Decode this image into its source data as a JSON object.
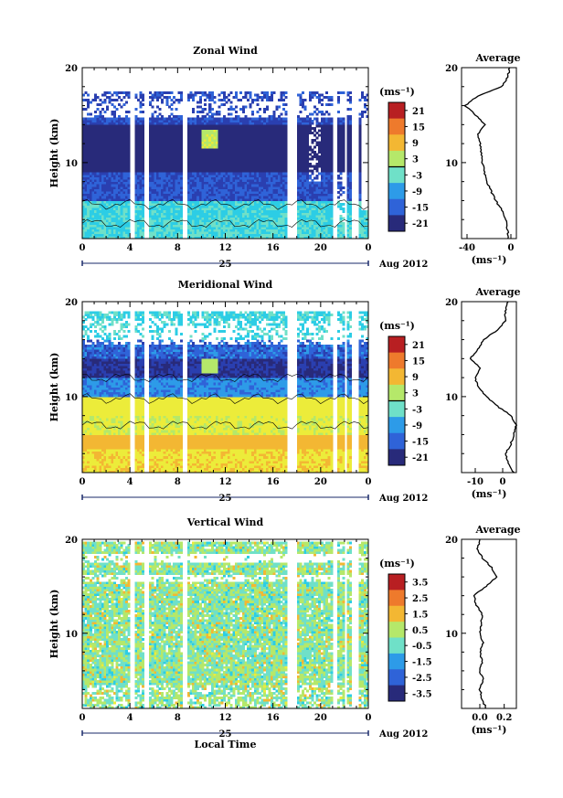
{
  "chart_data": [
    {
      "type": "heatmap",
      "title": "Zonal Wind",
      "ylabel": "Height (km)",
      "x_ticks": [
        "0",
        "4",
        "8",
        "12",
        "16",
        "20",
        "0"
      ],
      "y_ticks": [
        "20",
        "10"
      ],
      "date_label": "25",
      "month_label": "Aug 2012",
      "units": "(ms⁻¹)",
      "colorbar_ticks": [
        "21",
        "15",
        "9",
        "3",
        "-3",
        "-9",
        "-15",
        "-21"
      ],
      "colorbar_range": [
        -24,
        24
      ],
      "xlim": [
        0,
        24
      ],
      "ylim": [
        2,
        20
      ],
      "gaps": [
        [
          4.1,
          4.5
        ],
        [
          5.3,
          5.7
        ],
        [
          8.5,
          8.9
        ],
        [
          17.3,
          18.0
        ],
        [
          21.0,
          21.4
        ],
        [
          22.0,
          22.3
        ],
        [
          22.7,
          23.2
        ]
      ],
      "data_top": 17.5,
      "profile": {
        "title": "Average",
        "xlabel": "(ms⁻¹)",
        "x_ticks": [
          "-40",
          "0"
        ],
        "y_ticks": [
          "20",
          "10"
        ],
        "xlim": [
          -45,
          5
        ],
        "heights": [
          2,
          3,
          4,
          5,
          6,
          7,
          8,
          9,
          10,
          11,
          12,
          13,
          14,
          15,
          16,
          17,
          18,
          19,
          20
        ],
        "values": [
          -2,
          -3,
          -5,
          -8,
          -14,
          -18,
          -22,
          -24,
          -26,
          -27,
          -28,
          -30,
          -24,
          -32,
          -42,
          -30,
          -8,
          -3,
          -1
        ]
      }
    },
    {
      "type": "heatmap",
      "title": "Meridional Wind",
      "ylabel": "Height (km)",
      "x_ticks": [
        "0",
        "4",
        "8",
        "12",
        "16",
        "20",
        "0"
      ],
      "y_ticks": [
        "20",
        "10"
      ],
      "date_label": "25",
      "month_label": "Aug 2012",
      "units": "(ms⁻¹)",
      "colorbar_ticks": [
        "21",
        "15",
        "9",
        "3",
        "-3",
        "-9",
        "-15",
        "-21"
      ],
      "colorbar_range": [
        -24,
        24
      ],
      "xlim": [
        0,
        24
      ],
      "ylim": [
        2,
        20
      ],
      "gaps": [
        [
          4.1,
          4.5
        ],
        [
          5.3,
          5.7
        ],
        [
          8.5,
          8.9
        ],
        [
          17.3,
          18.0
        ],
        [
          21.0,
          21.4
        ],
        [
          22.0,
          22.3
        ],
        [
          22.7,
          23.2
        ]
      ],
      "data_top": 19.0,
      "profile": {
        "title": "Average",
        "xlabel": "(ms⁻¹)",
        "x_ticks": [
          "-10",
          "0"
        ],
        "y_ticks": [
          "20",
          "10"
        ],
        "xlim": [
          -15,
          5
        ],
        "heights": [
          2,
          3,
          4,
          5,
          6,
          7,
          8,
          9,
          10,
          11,
          12,
          13,
          14,
          15,
          16,
          17,
          18,
          19,
          20
        ],
        "values": [
          4,
          2,
          1,
          3,
          4,
          5,
          3,
          -2,
          -6,
          -9,
          -10,
          -8,
          -12,
          -9,
          -7,
          -2,
          1,
          1,
          2
        ]
      }
    },
    {
      "type": "heatmap",
      "title": "Vertical Wind",
      "ylabel": "Height (km)",
      "xlabel": "Local Time",
      "x_ticks": [
        "0",
        "4",
        "8",
        "12",
        "16",
        "20",
        "0"
      ],
      "y_ticks": [
        "20",
        "10"
      ],
      "date_label": "25",
      "month_label": "Aug 2012",
      "units": "(ms⁻¹)",
      "colorbar_ticks": [
        "3.5",
        "2.5",
        "1.5",
        "0.5",
        "-0.5",
        "-1.5",
        "-2.5",
        "-3.5"
      ],
      "colorbar_range": [
        -4,
        4
      ],
      "xlim": [
        0,
        24
      ],
      "ylim": [
        2,
        20
      ],
      "gaps": [
        [
          4.1,
          4.5
        ],
        [
          5.3,
          5.7
        ],
        [
          8.5,
          8.9
        ],
        [
          17.3,
          18.0
        ],
        [
          21.0,
          21.4
        ],
        [
          22.0,
          22.3
        ],
        [
          22.7,
          23.2
        ]
      ],
      "data_top": 19.8,
      "profile": {
        "title": "Average",
        "xlabel": "(ms⁻¹)",
        "x_ticks": [
          "0.0",
          "0.2"
        ],
        "y_ticks": [
          "20",
          "10"
        ],
        "xlim": [
          -0.15,
          0.3
        ],
        "heights": [
          2,
          3,
          4,
          5,
          6,
          7,
          8,
          9,
          10,
          11,
          12,
          13,
          14,
          15,
          16,
          17,
          18,
          19,
          20
        ],
        "values": [
          0.05,
          0.02,
          0.0,
          0.03,
          0.0,
          0.02,
          0.0,
          0.03,
          0.0,
          0.01,
          0.02,
          -0.03,
          -0.05,
          0.05,
          0.14,
          0.1,
          0.02,
          -0.02,
          0.0
        ]
      }
    }
  ]
}
